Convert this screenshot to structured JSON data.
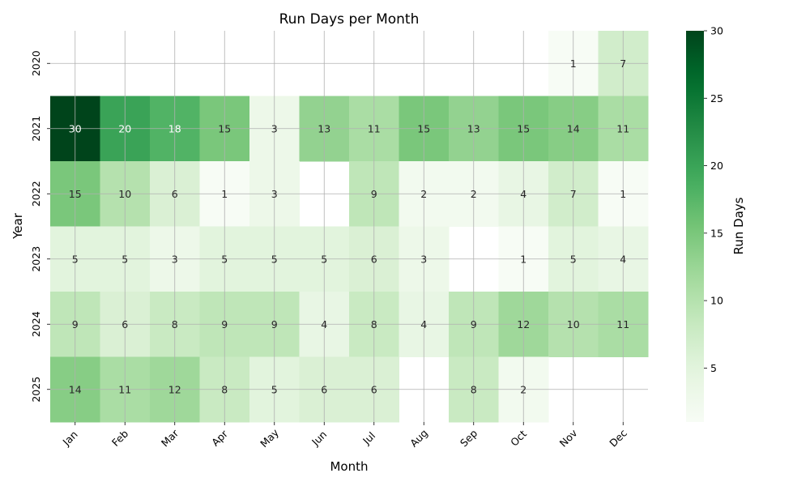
{
  "chart_data": {
    "type": "heatmap",
    "title": "Run Days per Month",
    "xlabel": "Month",
    "ylabel": "Year",
    "colorbar_label": "Run Days",
    "x_categories": [
      "Jan",
      "Feb",
      "Mar",
      "Apr",
      "May",
      "Jun",
      "Jul",
      "Aug",
      "Sep",
      "Oct",
      "Nov",
      "Dec"
    ],
    "y_categories": [
      "2020",
      "2021",
      "2022",
      "2023",
      "2024",
      "2025"
    ],
    "values": [
      [
        null,
        null,
        null,
        null,
        null,
        null,
        null,
        null,
        null,
        null,
        1,
        7
      ],
      [
        30,
        20,
        18,
        15,
        3,
        13,
        11,
        15,
        13,
        15,
        14,
        11
      ],
      [
        15,
        10,
        6,
        1,
        3,
        null,
        9,
        2,
        2,
        4,
        7,
        1
      ],
      [
        5,
        5,
        3,
        5,
        5,
        5,
        6,
        3,
        null,
        1,
        5,
        4
      ],
      [
        9,
        6,
        8,
        9,
        9,
        4,
        8,
        4,
        9,
        12,
        10,
        11
      ],
      [
        14,
        11,
        12,
        8,
        5,
        6,
        6,
        null,
        8,
        2,
        null,
        null
      ]
    ],
    "value_range": [
      1,
      30
    ],
    "colorbar_ticks": [
      5,
      10,
      15,
      20,
      25,
      30
    ],
    "colormap": "Greens",
    "grid": true
  }
}
